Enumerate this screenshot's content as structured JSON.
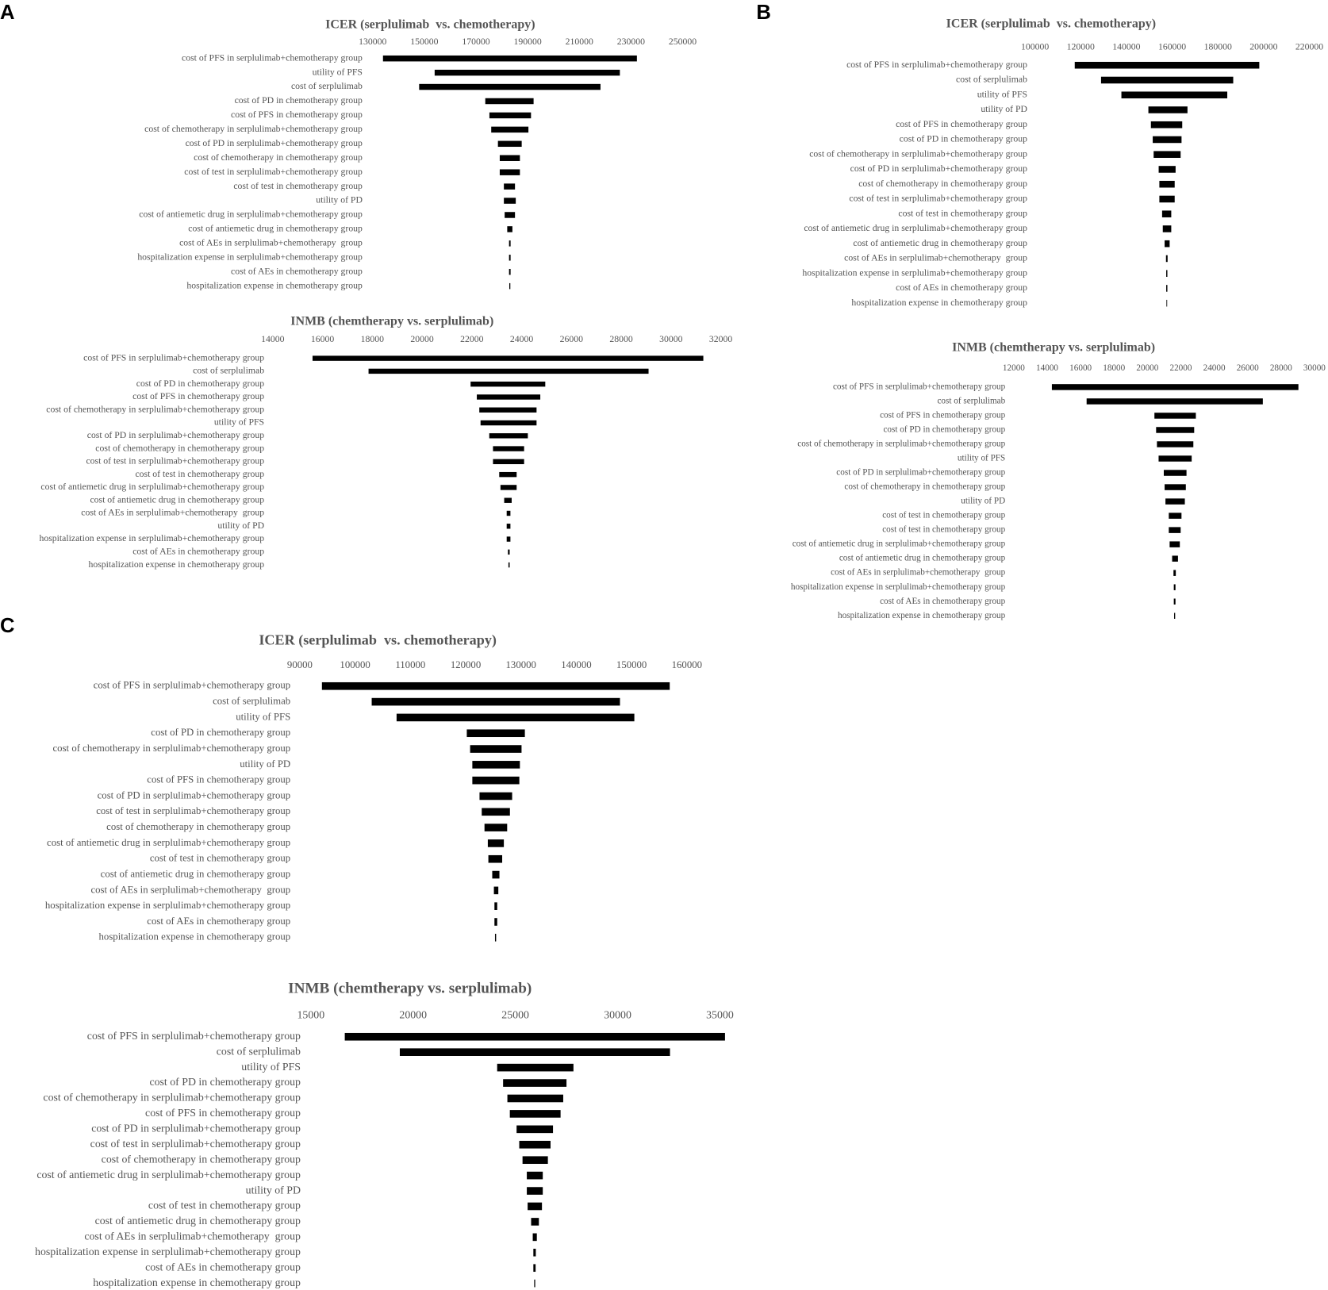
{
  "panel_labels": [
    "A",
    "B",
    "C"
  ],
  "chart_data": [
    {
      "type": "tornado",
      "title": "ICER (serplulimab  vs. chemotherapy)",
      "xlim": [
        130000,
        250000
      ],
      "xticks": [
        130000,
        150000,
        170000,
        190000,
        210000,
        230000,
        250000
      ],
      "color": "#000000",
      "categories": [
        "cost of PFS in serplulimab+chemotherapy group",
        "utility of PFS",
        "cost of serplulimab",
        "cost of PD in chemotherapy group",
        "cost of PFS in chemotherapy group",
        "cost of chemotherapy in serplulimab+chemotherapy group",
        "cost of PD in serplulimab+chemotherapy group",
        "cost of chemotherapy in chemotherapy group",
        "cost of test in serplulimab+chemotherapy group",
        "cost of test in chemotherapy group",
        "utility of PD",
        "cost of antiemetic drug in serplulimab+chemotherapy group",
        "cost of antiemetic drug in chemotherapy group",
        "cost of AEs in serplulimab+chemotherapy  group",
        "hospitalization expense in serplulimab+chemotherapy group",
        "cost of AEs in chemotherapy group",
        "hospitalization expense in chemotherapy group"
      ],
      "low": [
        134000,
        154000,
        148000,
        173600,
        175200,
        175900,
        178500,
        179200,
        179200,
        180800,
        180800,
        181100,
        182100,
        182800,
        182800,
        182800,
        182900
      ],
      "high": [
        232300,
        225700,
        218200,
        192300,
        191300,
        190300,
        187700,
        187000,
        187000,
        185100,
        185400,
        185100,
        184100,
        183400,
        183400,
        183400,
        183300
      ]
    },
    {
      "type": "tornado",
      "title": "INMB (chemtherapy vs. serplulimab)",
      "xlim": [
        14000,
        32000
      ],
      "xticks": [
        14000,
        16000,
        18000,
        20000,
        22000,
        24000,
        26000,
        28000,
        30000,
        32000
      ],
      "color": "#000000",
      "categories": [
        "cost of PFS in serplulimab+chemotherapy group",
        "cost of serplulimab",
        "cost of PD in chemotherapy group",
        "cost of PFS in chemotherapy group",
        "cost of chemotherapy in serplulimab+chemotherapy group",
        "utility of PFS",
        "cost of PD in serplulimab+chemotherapy group",
        "cost of chemotherapy in chemotherapy group",
        "cost of test in serplulimab+chemotherapy group",
        "cost of test in chemotherapy group",
        "cost of antiemetic drug in serplulimab+chemotherapy group",
        "cost of antiemetic drug in chemotherapy group",
        "cost of AEs in serplulimab+chemotherapy  group",
        "utility of PD",
        "hospitalization expense in serplulimab+chemotherapy group",
        "cost of AEs in chemotherapy group",
        "hospitalization expense in chemotherapy group"
      ],
      "low": [
        15600,
        17850,
        21950,
        22200,
        22300,
        22350,
        22700,
        22850,
        22850,
        23100,
        23150,
        23300,
        23400,
        23400,
        23400,
        23450,
        23470
      ],
      "high": [
        31300,
        29100,
        24950,
        24750,
        24600,
        24600,
        24250,
        24100,
        24100,
        23800,
        23800,
        23600,
        23550,
        23550,
        23550,
        23520,
        23520
      ]
    },
    {
      "type": "tornado",
      "title": "ICER (serplulimab  vs. chemotherapy)",
      "xlim": [
        100000,
        220000
      ],
      "xticks": [
        100000,
        120000,
        140000,
        160000,
        180000,
        200000,
        220000
      ],
      "color": "#000000",
      "categories": [
        "cost of PFS in serplulimab+chemotherapy group",
        "cost of serplulimab",
        "utility of PFS",
        "utility of PD",
        "cost of PFS in chemotherapy group",
        "cost of PD in chemotherapy group",
        "cost of chemotherapy in serplulimab+chemotherapy group",
        "cost of PD in serplulimab+chemotherapy group",
        "cost of chemotherapy in chemotherapy group",
        "cost of test in serplulimab+chemotherapy group",
        "cost of test in chemotherapy group",
        "cost of antiemetic drug in serplulimab+chemotherapy group",
        "cost of antiemetic drug in chemotherapy group",
        "cost of AEs in serplulimab+chemotherapy  group",
        "hospitalization expense in serplulimab+chemotherapy group",
        "cost of AEs in chemotherapy group",
        "hospitalization expense in chemotherapy group"
      ],
      "low": [
        117400,
        128900,
        137800,
        149600,
        150700,
        151500,
        151900,
        154100,
        154400,
        154400,
        155600,
        155900,
        156700,
        157300,
        157400,
        157400,
        157500
      ],
      "high": [
        198100,
        186700,
        184100,
        166700,
        164400,
        164100,
        163700,
        161500,
        161100,
        161100,
        159600,
        159600,
        158900,
        158000,
        157900,
        157900,
        157800
      ]
    },
    {
      "type": "tornado",
      "title": "INMB (chemtherapy vs. serplulimab)",
      "xlim": [
        12000,
        30000
      ],
      "xticks": [
        12000,
        14000,
        16000,
        18000,
        20000,
        22000,
        24000,
        26000,
        28000,
        30000
      ],
      "color": "#000000",
      "categories": [
        "cost of PFS in serplulimab+chemotherapy group",
        "cost of serplulimab",
        "cost of PFS in chemotherapy group",
        "cost of PD in chemotherapy group",
        "cost of chemotherapy in serplulimab+chemotherapy group",
        "utility of PFS",
        "cost of PD in serplulimab+chemotherapy group",
        "cost of chemotherapy in chemotherapy group",
        "utility of PD",
        "cost of test in chemotherapy group",
        "cost of test in chemotherapy group",
        "cost of antiemetic drug in serplulimab+chemotherapy group",
        "cost of antiemetic drug in chemotherapy group",
        "cost of AEs in serplulimab+chemotherapy  group",
        "hospitalization expense in serplulimab+chemotherapy group",
        "cost of AEs in chemotherapy group",
        "hospitalization expense in chemotherapy group"
      ],
      "low": [
        14280,
        16360,
        20420,
        20520,
        20570,
        20670,
        20980,
        21030,
        21080,
        21280,
        21280,
        21330,
        21480,
        21560,
        21580,
        21580,
        21600
      ],
      "high": [
        29040,
        26910,
        22900,
        22800,
        22750,
        22650,
        22340,
        22300,
        22240,
        22040,
        21990,
        21940,
        21830,
        21700,
        21680,
        21680,
        21660
      ]
    },
    {
      "type": "tornado",
      "title": "ICER (serplulimab  vs. chemotherapy)",
      "xlim": [
        90000,
        160000
      ],
      "xticks": [
        90000,
        100000,
        110000,
        120000,
        130000,
        140000,
        150000,
        160000
      ],
      "color": "#000000",
      "categories": [
        "cost of PFS in serplulimab+chemotherapy group",
        "cost of serplulimab",
        "utility of PFS",
        "cost of PD in chemotherapy group",
        "cost of chemotherapy in serplulimab+chemotherapy group",
        "utility of PD",
        "cost of PFS in chemotherapy group",
        "cost of PD in serplulimab+chemotherapy group",
        "cost of test in serplulimab+chemotherapy group",
        "cost of chemotherapy in chemotherapy group",
        "cost of antiemetic drug in serplulimab+chemotherapy group",
        "cost of test in chemotherapy group",
        "cost of antiemetic drug in chemotherapy group",
        "cost of AEs in serplulimab+chemotherapy  group",
        "hospitalization expense in serplulimab+chemotherapy group",
        "cost of AEs in chemotherapy group",
        "hospitalization expense in chemotherapy group"
      ],
      "low": [
        94000,
        103000,
        107500,
        120200,
        120800,
        121200,
        121200,
        122500,
        122900,
        123400,
        124000,
        124100,
        124800,
        125100,
        125200,
        125200,
        125300
      ],
      "high": [
        156900,
        147900,
        150500,
        130700,
        130100,
        129800,
        129700,
        128400,
        128000,
        127500,
        126900,
        126600,
        126100,
        125900,
        125700,
        125700,
        125500
      ]
    },
    {
      "type": "tornado",
      "title": "INMB (chemtherapy vs. serplulimab)",
      "xlim": [
        15000,
        35000
      ],
      "xticks": [
        15000,
        20000,
        25000,
        30000,
        35000
      ],
      "color": "#000000",
      "categories": [
        "cost of PFS in serplulimab+chemotherapy group",
        "cost of serplulimab",
        "utility of PFS",
        "cost of PD in chemotherapy group",
        "cost of chemotherapy in serplulimab+chemotherapy group",
        "cost of PFS in chemotherapy group",
        "cost of PD in serplulimab+chemotherapy group",
        "cost of test in serplulimab+chemotherapy group",
        "cost of chemotherapy in chemotherapy group",
        "cost of antiemetic drug in serplulimab+chemotherapy group",
        "utility of PD",
        "cost of test in chemotherapy group",
        "cost of antiemetic drug in chemotherapy group",
        "cost of AEs in serplulimab+chemotherapy  group",
        "hospitalization expense in serplulimab+chemotherapy group",
        "cost of AEs in chemotherapy group",
        "hospitalization expense in chemotherapy group"
      ],
      "low": [
        16660,
        19350,
        24110,
        24400,
        24610,
        24730,
        25060,
        25190,
        25350,
        25560,
        25560,
        25600,
        25770,
        25850,
        25880,
        25880,
        25920
      ],
      "high": [
        35250,
        32560,
        27840,
        27500,
        27340,
        27210,
        26840,
        26720,
        26590,
        26340,
        26340,
        26300,
        26150,
        26050,
        26000,
        25990,
        25970
      ]
    }
  ]
}
